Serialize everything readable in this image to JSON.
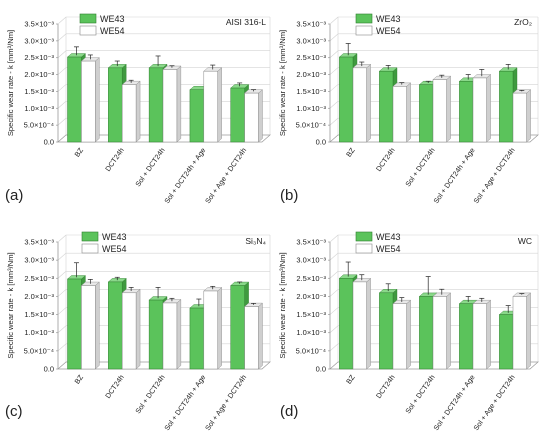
{
  "figure": {
    "legend_labels": [
      "WE43",
      "WE54"
    ],
    "colors": {
      "we43_front": "#5bc35b",
      "we43_side": "#3f9a3f",
      "we43_top": "#8ad88a",
      "we54_front": "#ffffff",
      "we54_side": "#cfcfcf",
      "we54_top": "#e8e8e8",
      "axis": "#9a9a9a",
      "grid": "#d4d4d4"
    }
  },
  "chart_data": [
    {
      "type": "bar",
      "panel_label": "(a)",
      "title": "AISI 316-L",
      "ylabel": "Specific wear rate - k [mm³/Nm]",
      "ylim": [
        0,
        0.0035
      ],
      "ytick_labels": [
        "0.0",
        "5.0×10⁻⁴",
        "1.0×10⁻³",
        "1.5×10⁻³",
        "2.0×10⁻³",
        "2.5×10⁻³",
        "3.0×10⁻³",
        "3.5×10⁻³"
      ],
      "categories": [
        "BZ",
        "DCT24h",
        "Sol + DCT24h",
        "Sol + DCT24h + Age",
        "Sol + Age + DCT24h"
      ],
      "legend_position": "top-left",
      "series": [
        {
          "name": "WE43",
          "values": [
            0.00252,
            0.0022,
            0.0022,
            0.00155,
            0.0016
          ],
          "errors": [
            0.00025,
            0.00015,
            0.0003,
            0.0,
            0.0001
          ]
        },
        {
          "name": "WE54",
          "values": [
            0.0024,
            0.0017,
            0.00215,
            0.0021,
            0.00145
          ],
          "errors": [
            0.00013,
            8e-05,
            6e-05,
            0.00013,
            5e-05
          ]
        }
      ]
    },
    {
      "type": "bar",
      "panel_label": "(b)",
      "title": "ZrO₂",
      "ylabel": "Specific wear rate - k [mm³/Nm]",
      "ylim": [
        0,
        0.0035
      ],
      "ytick_labels": [
        "0.0",
        "5.0×10⁻⁴",
        "1.0×10⁻³",
        "1.5×10⁻³",
        "2.0×10⁻³",
        "2.5×10⁻³",
        "3.0×10⁻³",
        "3.5×10⁻³"
      ],
      "categories": [
        "BZ",
        "DCT24h",
        "Sol + DCT24h",
        "Sol + DCT24h + Age",
        "Sol + Age + DCT24h"
      ],
      "legend_position": "top-left",
      "series": [
        {
          "name": "WE43",
          "values": [
            0.00252,
            0.0021,
            0.0017,
            0.0018,
            0.0021
          ],
          "errors": [
            0.00035,
            0.00012,
            5e-05,
            0.00015,
            0.00015
          ]
        },
        {
          "name": "WE54",
          "values": [
            0.0022,
            0.00165,
            0.00185,
            0.0019,
            0.00145
          ],
          "errors": [
            0.00012,
            6e-05,
            8e-05,
            0.0002,
            3e-05
          ]
        }
      ]
    },
    {
      "type": "bar",
      "panel_label": "(c)",
      "title": "Si₃N₄",
      "ylabel": "Specific wear rate - k [mm³/Nm]",
      "ylim": [
        0,
        0.0035
      ],
      "ytick_labels": [
        "0.0",
        "5.0×10⁻⁴",
        "1.0×10⁻³",
        "1.5×10⁻³",
        "2.0×10⁻³",
        "2.5×10⁻³",
        "3.0×10⁻³",
        "3.5×10⁻³"
      ],
      "categories": [
        "BZ",
        "DCT24h",
        "Sol + DCT24h",
        "Sol + DCT24h + Age",
        "Sol + Age + DCT24h"
      ],
      "legend_position": "top-left",
      "series": [
        {
          "name": "WE43",
          "values": [
            0.00248,
            0.0024,
            0.0019,
            0.00168,
            0.0023
          ],
          "errors": [
            0.0004,
            8e-05,
            0.0003,
            0.0002,
            5e-05
          ]
        },
        {
          "name": "WE54",
          "values": [
            0.0023,
            0.0021,
            0.00182,
            0.00215,
            0.00172
          ],
          "errors": [
            0.00012,
            0.0001,
            8e-05,
            8e-05,
            4e-05
          ]
        }
      ]
    },
    {
      "type": "bar",
      "panel_label": "(d)",
      "title": "WC",
      "ylabel": "Specific wear rate - k [mm³/Nm]",
      "ylim": [
        0,
        0.0035
      ],
      "ytick_labels": [
        "0.0",
        "5.0×10⁻⁴",
        "1.0×10⁻³",
        "1.5×10⁻³",
        "2.0×10⁻³",
        "2.5×10⁻³",
        "3.0×10⁻³",
        "3.5×10⁻³"
      ],
      "categories": [
        "BZ",
        "DCT24h",
        "Sol + DCT24h",
        "Sol + DCT24h + Age",
        "Sol + Age + DCT24h"
      ],
      "legend_position": "top-left",
      "series": [
        {
          "name": "WE43",
          "values": [
            0.0025,
            0.0021,
            0.002,
            0.0018,
            0.0015
          ],
          "errors": [
            0.0004,
            0.0002,
            0.0005,
            0.00015,
            0.0002
          ]
        },
        {
          "name": "WE54",
          "values": [
            0.0024,
            0.0018,
            0.002,
            0.0018,
            0.002
          ],
          "errors": [
            0.00015,
            0.00012,
            0.00015,
            0.0001,
            3e-05
          ]
        }
      ]
    }
  ]
}
